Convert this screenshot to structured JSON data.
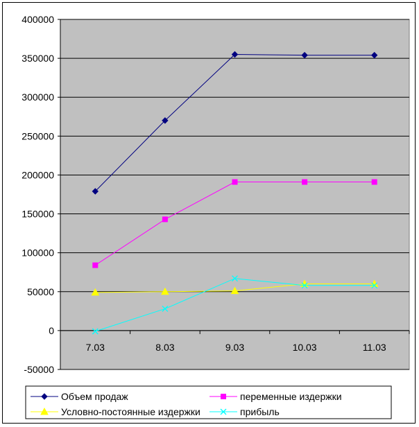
{
  "chart_data": {
    "type": "line",
    "title": "",
    "xlabel": "",
    "ylabel": "",
    "categories": [
      "7.03",
      "8.03",
      "9.03",
      "10.03",
      "11.03"
    ],
    "ylim": [
      -50000,
      400000
    ],
    "yticks": [
      -50000,
      0,
      50000,
      100000,
      150000,
      200000,
      250000,
      300000,
      350000,
      400000
    ],
    "ytick_labels": [
      "-50000",
      "0",
      "50000",
      "100000",
      "150000",
      "200000",
      "250000",
      "300000",
      "350000",
      "400000"
    ],
    "grid": "horizontal",
    "plot_background": "#c0c0c0",
    "legend_position": "bottom",
    "series": [
      {
        "name": "Объем продаж",
        "values": [
          179000,
          270000,
          355000,
          354000,
          354000
        ],
        "color": "#000080",
        "marker": "diamond"
      },
      {
        "name": "переменные издержки",
        "values": [
          84000,
          143000,
          191000,
          191000,
          191000
        ],
        "color": "#ff00ff",
        "marker": "square"
      },
      {
        "name": "Условно-постоянные издержки",
        "values": [
          49000,
          50000,
          51000,
          60000,
          60000
        ],
        "color": "#ffff00",
        "marker": "triangle"
      },
      {
        "name": "прибыль",
        "values": [
          -1000,
          28000,
          67000,
          58000,
          58000
        ],
        "color": "#00ffff",
        "marker": "x"
      }
    ]
  }
}
